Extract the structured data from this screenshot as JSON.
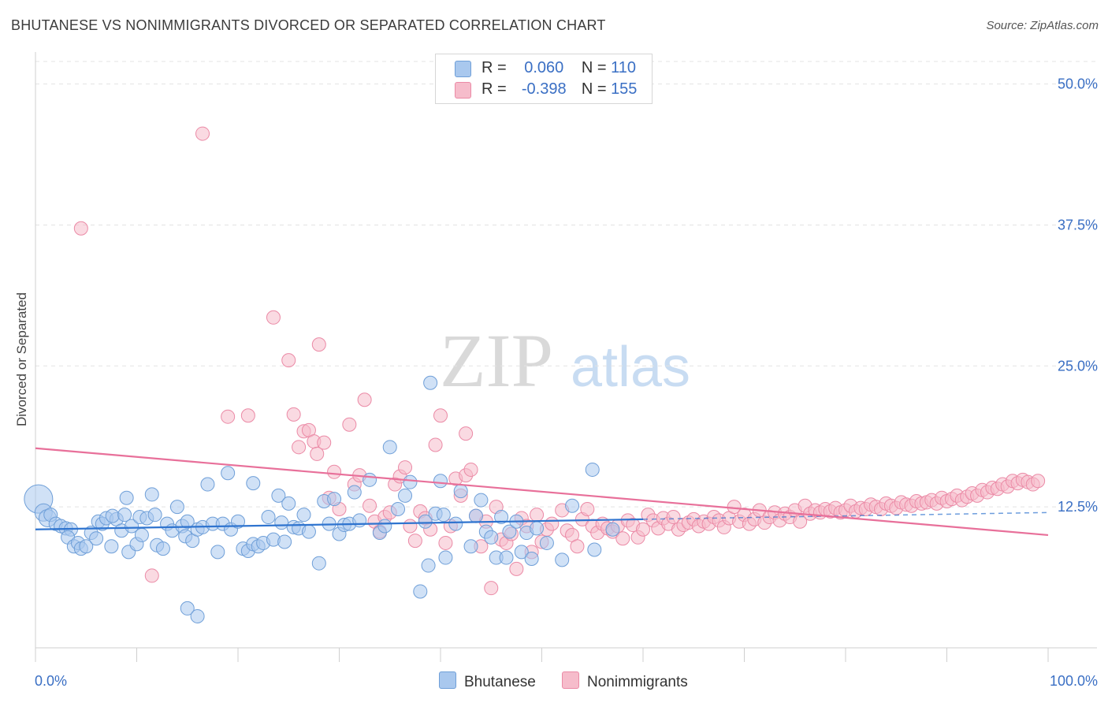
{
  "title": "BHUTANESE VS NONIMMIGRANTS DIVORCED OR SEPARATED CORRELATION CHART",
  "source": "Source: ZipAtlas.com",
  "watermark": {
    "zip": "ZIP",
    "atlas": "atlas"
  },
  "legend_top": {
    "rows": [
      {
        "r_label": "R =",
        "r_value": "0.060",
        "n_label": "N =",
        "n_value": "110"
      },
      {
        "r_label": "R =",
        "r_value": "-0.398",
        "n_label": "N =",
        "n_value": "155"
      }
    ]
  },
  "legend_bottom": {
    "items": [
      "Bhutanese",
      "Nonimmigrants"
    ]
  },
  "colors": {
    "blue_fill": "#a9c8ee",
    "blue_stroke": "#6f9fd8",
    "blue_line": "#2f74cf",
    "pink_fill": "#f6bccb",
    "pink_stroke": "#eb8aa6",
    "pink_line": "#e8709a",
    "tick_label": "#3a6fc4"
  },
  "chart_data": {
    "type": "scatter",
    "title": "BHUTANESE VS NONIMMIGRANTS DIVORCED OR SEPARATED CORRELATION CHART",
    "xlabel": "",
    "ylabel": "Divorced or Separated",
    "xlim": [
      0,
      100
    ],
    "ylim": [
      0,
      52
    ],
    "x_tick_labels": [
      "0.0%",
      "100.0%"
    ],
    "y_ticks": [
      12.5,
      25.0,
      37.5,
      50.0
    ],
    "y_tick_labels": [
      "12.5%",
      "25.0%",
      "37.5%",
      "50.0%"
    ],
    "grid": true,
    "legend_position": "top-center",
    "series": [
      {
        "name": "Bhutanese",
        "r": 0.06,
        "n": 110,
        "trend": {
          "x": [
            0,
            60
          ],
          "y": [
            10.5,
            11.4
          ],
          "dashed_to": [
            100,
            12.0
          ]
        },
        "points": [
          [
            0.3,
            13.2
          ],
          [
            0.8,
            12.0
          ],
          [
            1.2,
            11.5
          ],
          [
            1.5,
            11.8
          ],
          [
            2.0,
            11.0
          ],
          [
            2.5,
            10.8
          ],
          [
            3.0,
            10.6
          ],
          [
            3.5,
            10.5
          ],
          [
            3.2,
            9.8
          ],
          [
            3.8,
            9.0
          ],
          [
            4.2,
            9.3
          ],
          [
            4.5,
            8.8
          ],
          [
            5.0,
            9.0
          ],
          [
            5.5,
            10.2
          ],
          [
            6.0,
            9.7
          ],
          [
            6.2,
            11.2
          ],
          [
            6.6,
            11.0
          ],
          [
            7.0,
            11.5
          ],
          [
            7.5,
            9.0
          ],
          [
            8.0,
            11.4
          ],
          [
            7.6,
            11.7
          ],
          [
            8.5,
            10.4
          ],
          [
            8.8,
            11.8
          ],
          [
            9.2,
            8.5
          ],
          [
            9.5,
            10.8
          ],
          [
            9.0,
            13.3
          ],
          [
            10.0,
            9.2
          ],
          [
            10.3,
            11.6
          ],
          [
            10.5,
            10.0
          ],
          [
            11.0,
            11.5
          ],
          [
            11.5,
            13.6
          ],
          [
            11.8,
            11.8
          ],
          [
            12.0,
            9.1
          ],
          [
            12.6,
            8.8
          ],
          [
            13.0,
            11.0
          ],
          [
            13.5,
            10.4
          ],
          [
            14.0,
            12.5
          ],
          [
            14.5,
            10.8
          ],
          [
            14.8,
            9.9
          ],
          [
            15.0,
            11.2
          ],
          [
            15.5,
            9.5
          ],
          [
            16.0,
            10.5
          ],
          [
            16.5,
            10.7
          ],
          [
            17.0,
            14.5
          ],
          [
            17.5,
            11.0
          ],
          [
            18.0,
            8.5
          ],
          [
            18.5,
            11.0
          ],
          [
            19.0,
            15.5
          ],
          [
            19.3,
            10.5
          ],
          [
            20.0,
            11.2
          ],
          [
            20.5,
            8.8
          ],
          [
            21.0,
            8.6
          ],
          [
            21.5,
            9.2
          ],
          [
            21.5,
            14.6
          ],
          [
            22.0,
            9.0
          ],
          [
            22.5,
            9.3
          ],
          [
            23.0,
            11.6
          ],
          [
            23.5,
            9.6
          ],
          [
            24.0,
            13.5
          ],
          [
            24.3,
            11.1
          ],
          [
            24.6,
            9.4
          ],
          [
            25.0,
            12.8
          ],
          [
            25.5,
            10.7
          ],
          [
            26.0,
            10.6
          ],
          [
            26.5,
            11.8
          ],
          [
            27.0,
            10.3
          ],
          [
            28.0,
            7.5
          ],
          [
            28.5,
            13.0
          ],
          [
            29.0,
            11.0
          ],
          [
            29.5,
            13.2
          ],
          [
            30.0,
            10.1
          ],
          [
            30.5,
            10.9
          ],
          [
            31.0,
            11.0
          ],
          [
            31.5,
            13.8
          ],
          [
            32.0,
            11.3
          ],
          [
            33.0,
            14.9
          ],
          [
            34.0,
            10.2
          ],
          [
            34.5,
            10.8
          ],
          [
            35.0,
            17.8
          ],
          [
            35.8,
            12.3
          ],
          [
            36.5,
            13.5
          ],
          [
            37.0,
            14.7
          ],
          [
            38.0,
            5.0
          ],
          [
            38.5,
            11.2
          ],
          [
            39.0,
            23.5
          ],
          [
            38.8,
            7.3
          ],
          [
            39.5,
            11.9
          ],
          [
            40.0,
            14.8
          ],
          [
            40.5,
            8.0
          ],
          [
            40.3,
            11.8
          ],
          [
            41.5,
            11.0
          ],
          [
            42.0,
            13.9
          ],
          [
            43.0,
            9.0
          ],
          [
            43.5,
            11.7
          ],
          [
            44.0,
            13.1
          ],
          [
            44.5,
            10.3
          ],
          [
            45.0,
            9.8
          ],
          [
            45.5,
            8.0
          ],
          [
            46.0,
            11.6
          ],
          [
            46.5,
            8.0
          ],
          [
            46.8,
            10.3
          ],
          [
            47.5,
            11.2
          ],
          [
            48.0,
            8.5
          ],
          [
            48.5,
            10.2
          ],
          [
            49.0,
            7.9
          ],
          [
            49.5,
            10.6
          ],
          [
            50.5,
            9.3
          ],
          [
            52.0,
            7.8
          ],
          [
            53.0,
            12.6
          ],
          [
            55.0,
            15.8
          ],
          [
            55.2,
            8.7
          ],
          [
            57.0,
            10.5
          ],
          [
            15.0,
            3.5
          ],
          [
            16.0,
            2.8
          ]
        ]
      },
      {
        "name": "Nonimmigrants",
        "r": -0.398,
        "n": 155,
        "trend": {
          "x": [
            0,
            100
          ],
          "y": [
            17.7,
            10.0
          ]
        },
        "points": [
          [
            4.5,
            37.2
          ],
          [
            16.5,
            45.6
          ],
          [
            11.5,
            6.4
          ],
          [
            19.0,
            20.5
          ],
          [
            23.5,
            29.3
          ],
          [
            25.0,
            25.5
          ],
          [
            25.5,
            20.7
          ],
          [
            26.0,
            17.8
          ],
          [
            26.5,
            19.2
          ],
          [
            27.0,
            19.3
          ],
          [
            27.5,
            18.3
          ],
          [
            27.8,
            17.2
          ],
          [
            28.0,
            26.9
          ],
          [
            28.5,
            18.2
          ],
          [
            29.0,
            13.3
          ],
          [
            29.5,
            15.6
          ],
          [
            30.0,
            12.3
          ],
          [
            31.0,
            19.8
          ],
          [
            31.5,
            14.5
          ],
          [
            32.0,
            15.3
          ],
          [
            32.5,
            22.0
          ],
          [
            33.0,
            12.6
          ],
          [
            33.5,
            11.2
          ],
          [
            34.0,
            10.3
          ],
          [
            34.5,
            11.6
          ],
          [
            35.0,
            12.0
          ],
          [
            35.5,
            14.5
          ],
          [
            36.0,
            15.2
          ],
          [
            36.5,
            16.0
          ],
          [
            37.0,
            10.8
          ],
          [
            37.5,
            9.5
          ],
          [
            38.0,
            12.1
          ],
          [
            38.5,
            11.5
          ],
          [
            39.0,
            10.5
          ],
          [
            39.5,
            18.0
          ],
          [
            40.0,
            20.6
          ],
          [
            40.5,
            9.3
          ],
          [
            41.0,
            10.8
          ],
          [
            41.5,
            15.0
          ],
          [
            42.0,
            13.5
          ],
          [
            42.5,
            15.3
          ],
          [
            43.0,
            15.8
          ],
          [
            43.5,
            11.7
          ],
          [
            44.0,
            9.0
          ],
          [
            44.5,
            11.2
          ],
          [
            45.0,
            5.3
          ],
          [
            45.5,
            12.5
          ],
          [
            46.0,
            9.6
          ],
          [
            46.5,
            9.3
          ],
          [
            47.0,
            10.1
          ],
          [
            47.5,
            7.0
          ],
          [
            48.0,
            11.5
          ],
          [
            48.5,
            10.8
          ],
          [
            49.0,
            8.5
          ],
          [
            49.5,
            11.8
          ],
          [
            50.0,
            9.4
          ],
          [
            50.5,
            10.5
          ],
          [
            51.0,
            11.0
          ],
          [
            52.0,
            12.2
          ],
          [
            52.5,
            10.4
          ],
          [
            53.0,
            10.0
          ],
          [
            53.5,
            9.0
          ],
          [
            54.0,
            11.4
          ],
          [
            54.5,
            12.3
          ],
          [
            55.0,
            10.8
          ],
          [
            55.5,
            10.2
          ],
          [
            56.0,
            11.0
          ],
          [
            56.5,
            10.6
          ],
          [
            57.0,
            10.3
          ],
          [
            57.5,
            10.8
          ],
          [
            58.0,
            9.7
          ],
          [
            58.5,
            11.3
          ],
          [
            59.0,
            10.9
          ],
          [
            59.5,
            9.8
          ],
          [
            60.0,
            10.5
          ],
          [
            60.5,
            11.8
          ],
          [
            61.0,
            11.3
          ],
          [
            61.5,
            10.6
          ],
          [
            62.0,
            11.5
          ],
          [
            62.5,
            11.0
          ],
          [
            63.0,
            11.6
          ],
          [
            63.5,
            10.5
          ],
          [
            64.0,
            10.9
          ],
          [
            64.5,
            11.1
          ],
          [
            65.0,
            11.4
          ],
          [
            65.5,
            10.8
          ],
          [
            66.0,
            11.2
          ],
          [
            66.5,
            11.0
          ],
          [
            67.0,
            11.6
          ],
          [
            67.5,
            11.3
          ],
          [
            68.0,
            10.7
          ],
          [
            68.5,
            11.5
          ],
          [
            69.0,
            12.5
          ],
          [
            69.5,
            11.2
          ],
          [
            70.0,
            11.8
          ],
          [
            70.5,
            11.0
          ],
          [
            71.0,
            11.4
          ],
          [
            71.5,
            12.2
          ],
          [
            72.0,
            11.1
          ],
          [
            72.5,
            11.6
          ],
          [
            73.0,
            12.0
          ],
          [
            73.5,
            11.3
          ],
          [
            74.0,
            11.9
          ],
          [
            74.5,
            11.6
          ],
          [
            75.0,
            12.2
          ],
          [
            75.5,
            11.2
          ],
          [
            76.0,
            12.6
          ],
          [
            76.5,
            11.9
          ],
          [
            77.0,
            12.2
          ],
          [
            77.5,
            12.0
          ],
          [
            78.0,
            12.3
          ],
          [
            78.5,
            12.1
          ],
          [
            79.0,
            12.4
          ],
          [
            79.5,
            12.0
          ],
          [
            80.0,
            12.2
          ],
          [
            80.5,
            12.6
          ],
          [
            81.0,
            12.1
          ],
          [
            81.5,
            12.4
          ],
          [
            82.0,
            12.3
          ],
          [
            82.5,
            12.7
          ],
          [
            83.0,
            12.5
          ],
          [
            83.5,
            12.3
          ],
          [
            84.0,
            12.8
          ],
          [
            84.5,
            12.6
          ],
          [
            85.0,
            12.4
          ],
          [
            85.5,
            12.9
          ],
          [
            86.0,
            12.7
          ],
          [
            86.5,
            12.6
          ],
          [
            87.0,
            13.0
          ],
          [
            87.5,
            12.8
          ],
          [
            88.0,
            12.9
          ],
          [
            88.5,
            13.1
          ],
          [
            89.0,
            12.8
          ],
          [
            89.5,
            13.3
          ],
          [
            90.0,
            13.0
          ],
          [
            90.5,
            13.2
          ],
          [
            91.0,
            13.5
          ],
          [
            91.5,
            13.1
          ],
          [
            92.0,
            13.4
          ],
          [
            92.5,
            13.7
          ],
          [
            93.0,
            13.5
          ],
          [
            93.5,
            14.0
          ],
          [
            94.0,
            13.8
          ],
          [
            94.5,
            14.2
          ],
          [
            95.0,
            14.1
          ],
          [
            95.5,
            14.5
          ],
          [
            96.0,
            14.3
          ],
          [
            96.5,
            14.8
          ],
          [
            97.0,
            14.6
          ],
          [
            97.5,
            14.9
          ],
          [
            98.0,
            14.7
          ],
          [
            98.5,
            14.5
          ],
          [
            99.0,
            14.8
          ],
          [
            21.0,
            20.6
          ],
          [
            42.5,
            19.0
          ]
        ]
      }
    ]
  }
}
